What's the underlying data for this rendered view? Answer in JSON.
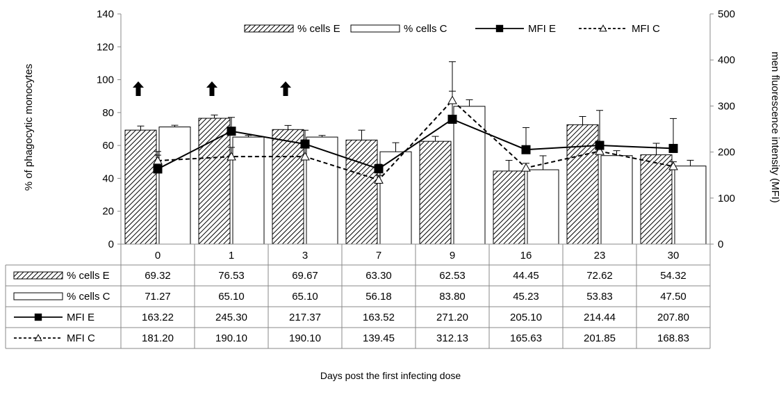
{
  "chart_data": {
    "type": "bar",
    "categories": [
      "0",
      "1",
      "3",
      "7",
      "9",
      "16",
      "23",
      "30"
    ],
    "series": [
      {
        "name": "% cells E",
        "kind": "bar",
        "axis": "left",
        "pattern": "diagonal-hatch",
        "values": [
          69.32,
          76.53,
          69.67,
          63.3,
          62.53,
          44.45,
          72.62,
          54.32
        ],
        "errors": [
          2.5,
          2.0,
          2.5,
          6.0,
          3.0,
          6.5,
          5.0,
          7.0
        ]
      },
      {
        "name": "% cells C",
        "kind": "bar",
        "axis": "left",
        "pattern": "open",
        "values": [
          71.27,
          65.1,
          65.1,
          56.18,
          83.8,
          45.23,
          53.83,
          47.5
        ],
        "errors": [
          1.0,
          1.0,
          1.0,
          5.5,
          4.0,
          8.5,
          3.0,
          3.5
        ]
      },
      {
        "name": "MFI E",
        "kind": "line",
        "axis": "right",
        "line_style": "solid",
        "marker": "filled-square",
        "values": [
          163.22,
          245.3,
          217.37,
          163.52,
          271.2,
          205.1,
          214.44,
          207.8
        ],
        "errors": [
          30,
          30,
          30,
          10,
          125,
          48,
          76,
          65
        ]
      },
      {
        "name": "MFI C",
        "kind": "line",
        "axis": "right",
        "line_style": "dashed",
        "marker": "open-triangle",
        "values": [
          181.2,
          190.1,
          190.1,
          139.45,
          312.13,
          165.63,
          201.85,
          168.83
        ],
        "errors": [
          20,
          20,
          20,
          10,
          20,
          10,
          10,
          10
        ]
      }
    ],
    "xlabel": "Days post the first infecting dose",
    "ylabel": "% of phagocytic monocytes",
    "y2label": "men fluorescence intensity (MFI)",
    "ylim": [
      0,
      140
    ],
    "y2lim": [
      0,
      500
    ],
    "yticks": [
      "0",
      "20",
      "40",
      "60",
      "80",
      "100",
      "120",
      "140"
    ],
    "y2ticks": [
      "0",
      "100",
      "200",
      "300",
      "400",
      "500"
    ],
    "arrows_at": [
      "0",
      "1",
      "3"
    ],
    "legend": "top",
    "grid": false,
    "data_table": {
      "rows": [
        {
          "label": "% cells E",
          "cells": [
            "69.32",
            "76.53",
            "69.67",
            "63.30",
            "62.53",
            "44.45",
            "72.62",
            "54.32"
          ]
        },
        {
          "label": "% cells C",
          "cells": [
            "71.27",
            "65.10",
            "65.10",
            "56.18",
            "83.80",
            "45.23",
            "53.83",
            "47.50"
          ]
        },
        {
          "label": "MFI E",
          "cells": [
            "163.22",
            "245.30",
            "217.37",
            "163.52",
            "271.20",
            "205.10",
            "214.44",
            "207.80"
          ]
        },
        {
          "label": "MFI C",
          "cells": [
            "181.20",
            "190.10",
            "190.10",
            "139.45",
            "312.13",
            "165.63",
            "201.85",
            "168.83"
          ]
        }
      ]
    }
  }
}
